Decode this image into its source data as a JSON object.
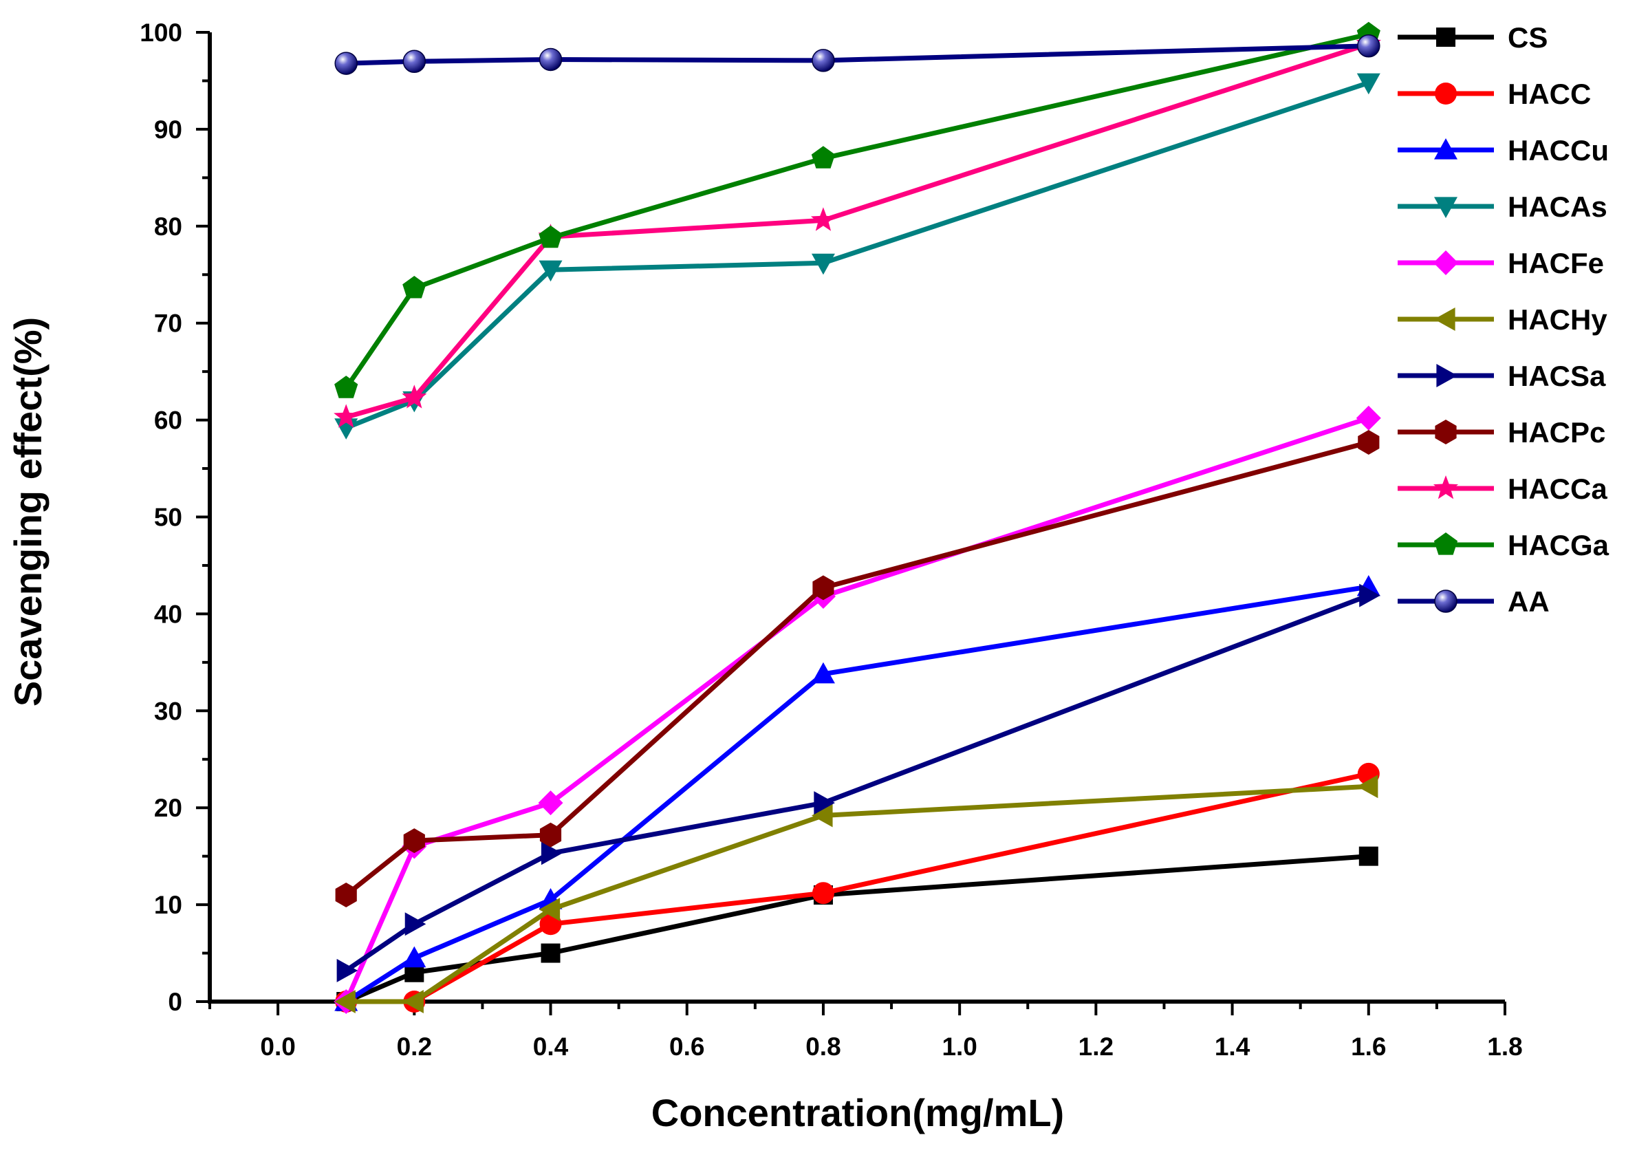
{
  "chart_data": {
    "type": "line",
    "title": "",
    "xlabel": "Concentration(mg/mL)",
    "ylabel": "Scavenging effect(%)",
    "xlim": [
      -0.1,
      1.8
    ],
    "ylim": [
      0,
      100
    ],
    "xticks": [
      "0.0",
      "0.2",
      "0.4",
      "0.6",
      "0.8",
      "1.0",
      "1.2",
      "1.4",
      "1.6",
      "1.8"
    ],
    "yticks": [
      "0",
      "10",
      "20",
      "30",
      "40",
      "50",
      "60",
      "70",
      "80",
      "90",
      "100"
    ],
    "grid": false,
    "legend_position": "top-right",
    "x": [
      0.1,
      0.2,
      0.4,
      0.8,
      1.6
    ],
    "series": [
      {
        "name": "CS",
        "color": "#000000",
        "marker": "square",
        "values": [
          0,
          3,
          5,
          11,
          15
        ]
      },
      {
        "name": "HACC",
        "color": "#ff0000",
        "marker": "circle",
        "values": [
          0,
          0,
          8,
          11.2,
          23.5
        ]
      },
      {
        "name": "HACCu",
        "color": "#0000ff",
        "marker": "triangle-up",
        "values": [
          0,
          4.5,
          10.5,
          33.8,
          42.8
        ]
      },
      {
        "name": "HACAs",
        "color": "#008080",
        "marker": "triangle-down",
        "values": [
          59.2,
          62,
          75.5,
          76.2,
          94.8
        ]
      },
      {
        "name": "HACFe",
        "color": "#ff00ff",
        "marker": "diamond",
        "values": [
          0,
          16,
          20.5,
          41.8,
          60.2
        ]
      },
      {
        "name": "HACHy",
        "color": "#808000",
        "marker": "triangle-left",
        "values": [
          0,
          0,
          9.5,
          19.2,
          22.2
        ]
      },
      {
        "name": "HACSa",
        "color": "#000080",
        "marker": "triangle-right",
        "values": [
          3.2,
          8,
          15.3,
          20.5,
          41.9
        ]
      },
      {
        "name": "HACPc",
        "color": "#800000",
        "marker": "hexagon",
        "values": [
          11,
          16.6,
          17.2,
          42.7,
          57.7
        ]
      },
      {
        "name": "HACCa",
        "color": "#ff0080",
        "marker": "star",
        "values": [
          60.3,
          62.3,
          78.9,
          80.6,
          98.8
        ]
      },
      {
        "name": "HACGa",
        "color": "#008000",
        "marker": "pentagon",
        "values": [
          63.3,
          73.6,
          78.8,
          87,
          99.8
        ]
      },
      {
        "name": "AA",
        "color": "#000080",
        "marker": "sphere",
        "values": [
          96.8,
          97,
          97.2,
          97.1,
          98.6
        ]
      }
    ]
  }
}
